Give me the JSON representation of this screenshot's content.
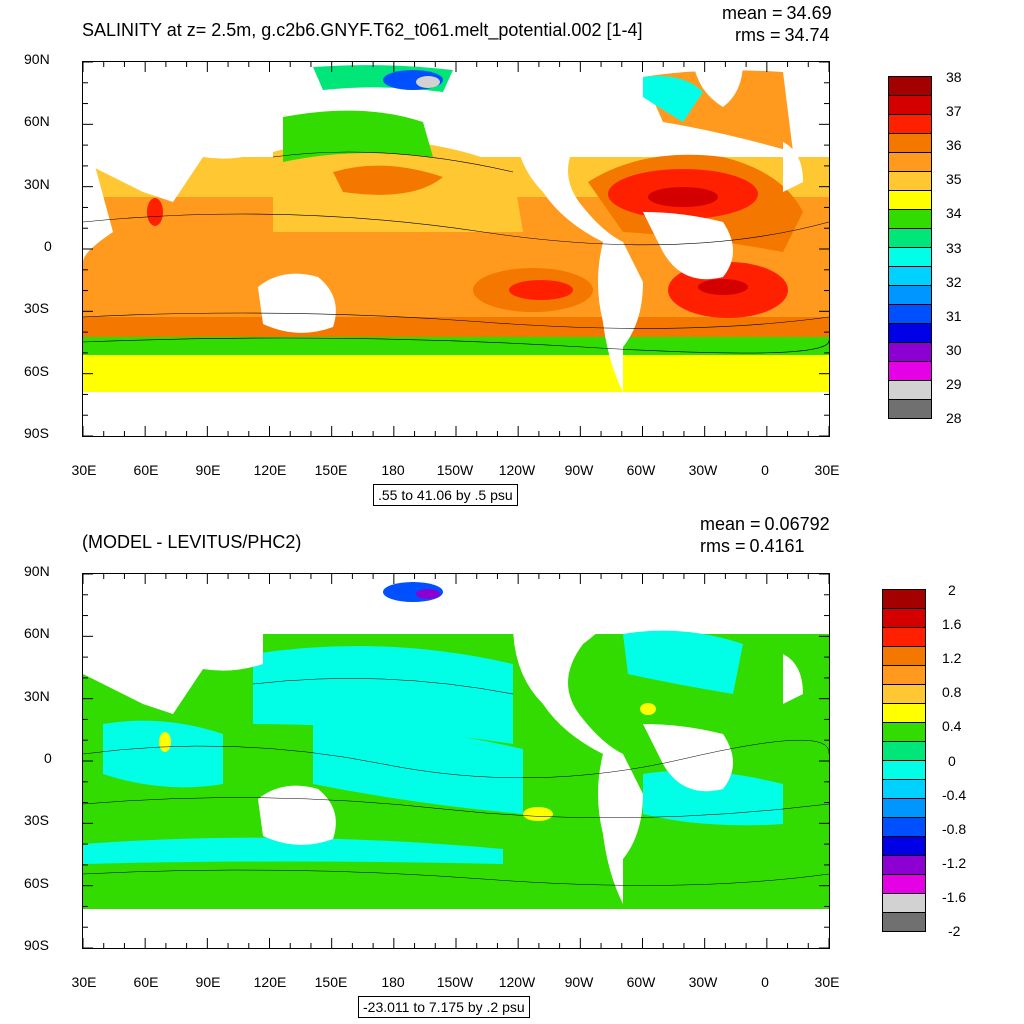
{
  "panels": [
    {
      "title": "SALINITY at z=   2.5m, g.c2b6.GNYF.T62_t061.melt_potential.002 [1-4]",
      "stats": {
        "mean_label": "mean =",
        "mean_value": "34.69",
        "rms_label": "rms =",
        "rms_value": "34.74"
      },
      "y_axis_labels": [
        "90N",
        "60N",
        "30N",
        "0",
        "30S",
        "60S",
        "90S"
      ],
      "x_axis_labels": [
        "30E",
        "60E",
        "90E",
        "120E",
        "150E",
        "180",
        "150W",
        "120W",
        "90W",
        "60W",
        "30W",
        "0",
        "30E"
      ],
      "range_text": ".55 to 41.06 by .5 psu",
      "colorbar": {
        "labels": [
          "38",
          "37",
          "36",
          "35",
          "34",
          "33",
          "32",
          "31",
          "30",
          "29",
          "28"
        ],
        "colors": [
          "#a50000",
          "#d40000",
          "#ff2000",
          "#f47800",
          "#ff9a1e",
          "#ffc832",
          "#ffff00",
          "#32dc00",
          "#00e678",
          "#00ffe6",
          "#00d2ff",
          "#0096ff",
          "#0050ff",
          "#0000e6",
          "#8c00d2",
          "#e600e6",
          "#d2d2d2",
          "#707070"
        ]
      }
    },
    {
      "title": "(MODEL - LEVITUS/PHC2)",
      "stats": {
        "mean_label": "mean =",
        "mean_value": "0.06792",
        "rms_label": "rms =",
        "rms_value": "0.4161"
      },
      "y_axis_labels": [
        "90N",
        "60N",
        "30N",
        "0",
        "30S",
        "60S",
        "90S"
      ],
      "x_axis_labels": [
        "30E",
        "60E",
        "90E",
        "120E",
        "150E",
        "180",
        "150W",
        "120W",
        "90W",
        "60W",
        "30W",
        "0",
        "30E"
      ],
      "range_text": "-23.011 to 7.175 by .2 psu",
      "colorbar": {
        "labels": [
          "2",
          "1.6",
          "1.2",
          "0.8",
          "0.4",
          "0",
          "-0.4",
          "-0.8",
          "-1.2",
          "-1.6",
          "-2"
        ],
        "colors": [
          "#a50000",
          "#d40000",
          "#ff2000",
          "#f47800",
          "#ff9a1e",
          "#ffc832",
          "#ffff00",
          "#32dc00",
          "#00e678",
          "#00ffe6",
          "#00d2ff",
          "#0096ff",
          "#0050ff",
          "#0000e6",
          "#8c00d2",
          "#e600e6",
          "#d2d2d2",
          "#707070"
        ]
      }
    }
  ]
}
